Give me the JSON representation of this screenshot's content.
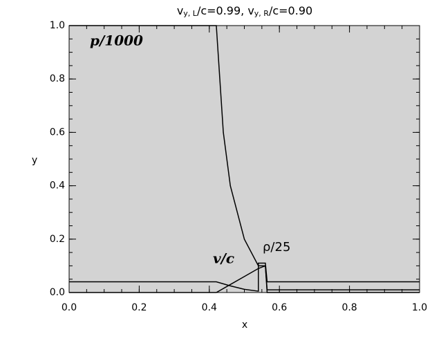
{
  "chart_data": {
    "type": "line",
    "title_parts": [
      "v",
      "y, L",
      "/c=0.99,  v",
      "y, R",
      "/c=0.90"
    ],
    "xlabel": "x",
    "ylabel": "y",
    "xlim": [
      0,
      1
    ],
    "ylim": [
      0,
      1
    ],
    "xticks": [
      {
        "value": 0,
        "label": "0.0"
      },
      0.2,
      0.4,
      0.6,
      0.8,
      {
        "value": 1,
        "label": "1.0"
      }
    ],
    "yticks": [
      {
        "value": 0,
        "label": "0.0"
      },
      0.2,
      0.4,
      0.6,
      0.8,
      {
        "value": 1,
        "label": "1.0"
      }
    ],
    "background": "#d3d3d3",
    "series": [
      {
        "name": "p/1000",
        "color": "#000000",
        "x": [
          0,
          0.42,
          0.43,
          0.44,
          0.46,
          0.5,
          0.54,
          0.56,
          0.565,
          1
        ],
        "values": [
          1,
          1,
          0.8,
          0.6,
          0.4,
          0.2,
          0.1,
          0.1,
          0.01,
          0.01
        ]
      },
      {
        "name": "v/c",
        "color": "#000000",
        "x": [
          0,
          0.42,
          0.46,
          0.5,
          0.54,
          0.56,
          0.565,
          1
        ],
        "values": [
          0,
          0,
          0.03,
          0.06,
          0.09,
          0.1,
          0,
          0
        ]
      },
      {
        "name": "ρ/25",
        "color": "#000000",
        "x": [
          0,
          0.42,
          0.46,
          0.5,
          0.54,
          0.54,
          0.56,
          0.565,
          1
        ],
        "values": [
          0.04,
          0.04,
          0.025,
          0.012,
          0.005,
          0.11,
          0.11,
          0.04,
          0.04
        ]
      }
    ]
  }
}
